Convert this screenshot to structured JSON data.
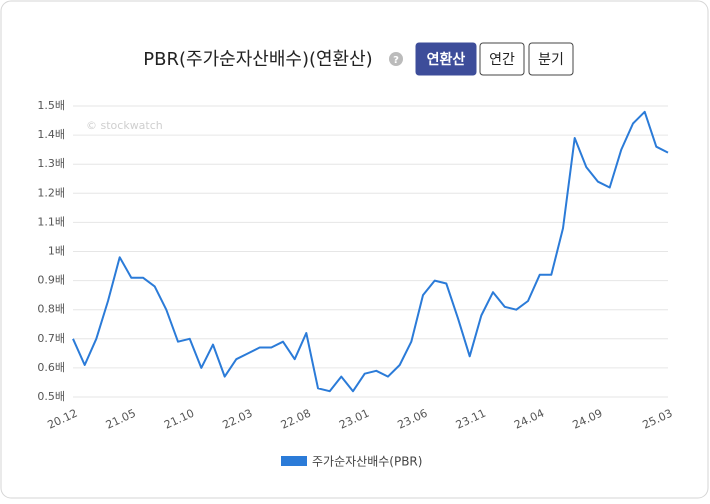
{
  "controls": {
    "help": "?",
    "buttons": [
      "연환산",
      "연간",
      "분기"
    ],
    "active_button": 0
  },
  "chart_data": {
    "type": "line",
    "title": "PBR(주가순자산배수)(연환산)",
    "watermark": "© stockwatch",
    "categories": [
      "20.12",
      null,
      null,
      null,
      null,
      "21.05",
      null,
      null,
      null,
      null,
      "21.10",
      null,
      null,
      null,
      null,
      "22.03",
      null,
      null,
      null,
      null,
      "22.08",
      null,
      null,
      null,
      null,
      "23.01",
      null,
      null,
      null,
      null,
      "23.06",
      null,
      null,
      null,
      null,
      "23.11",
      null,
      null,
      null,
      null,
      "24.04",
      null,
      null,
      null,
      null,
      "24.09",
      null,
      null,
      null,
      null,
      null,
      "25.03"
    ],
    "series": [
      {
        "name": "주가순자산배수(PBR)",
        "color": "#2b7bd8",
        "values": [
          0.7,
          0.61,
          0.7,
          0.83,
          0.98,
          0.91,
          0.91,
          0.88,
          0.8,
          0.69,
          0.7,
          0.6,
          0.68,
          0.57,
          0.63,
          0.65,
          0.67,
          0.67,
          0.69,
          0.63,
          0.72,
          0.53,
          0.52,
          0.57,
          0.52,
          0.58,
          0.59,
          0.57,
          0.61,
          0.69,
          0.85,
          0.9,
          0.89,
          0.77,
          0.64,
          0.78,
          0.86,
          0.81,
          0.8,
          0.83,
          0.92,
          0.92,
          1.08,
          1.39,
          1.29,
          1.24,
          1.22,
          1.35,
          1.44,
          1.48,
          1.36,
          1.34
        ]
      }
    ],
    "ylim": [
      0.5,
      1.5
    ],
    "yticks": [
      {
        "value": 0.5,
        "label": "0.5배"
      },
      {
        "value": 0.6,
        "label": "0.6배"
      },
      {
        "value": 0.7,
        "label": "0.7배"
      },
      {
        "value": 0.8,
        "label": "0.8배"
      },
      {
        "value": 0.9,
        "label": "0.9배"
      },
      {
        "value": 1,
        "label": "1배"
      },
      {
        "value": 1.1,
        "label": "1.1배"
      },
      {
        "value": 1.2,
        "label": "1.2배"
      },
      {
        "value": 1.3,
        "label": "1.3배"
      },
      {
        "value": 1.4,
        "label": "1.4배"
      },
      {
        "value": 1.5,
        "label": "1.5배"
      }
    ],
    "grid": true
  }
}
